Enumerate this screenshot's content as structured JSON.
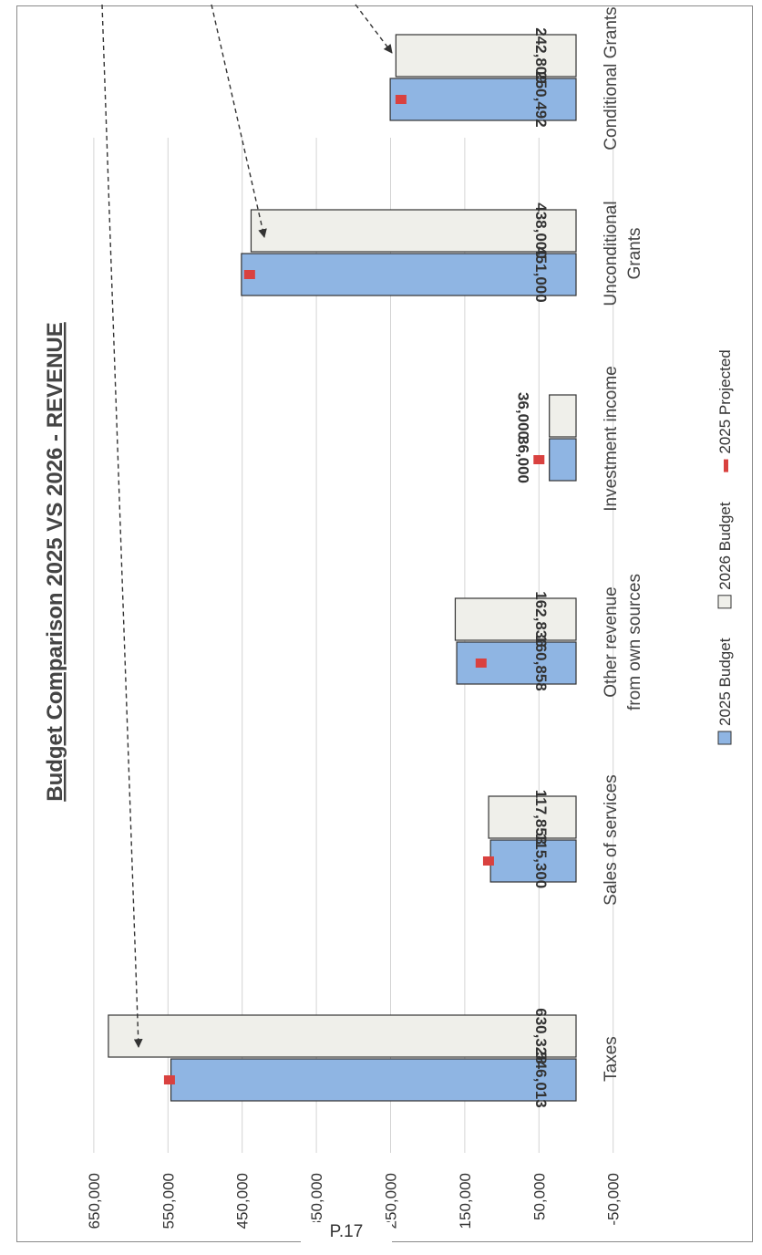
{
  "page": {
    "footer": "P.17"
  },
  "chart_data": {
    "type": "bar",
    "title": "Budget Comparison 2025 VS 2026 - REVENUE",
    "categories": [
      [
        "Taxes"
      ],
      [
        "Sales of services"
      ],
      [
        "Other revenue",
        "from own sources"
      ],
      [
        "Investment income"
      ],
      [
        "Unconditional",
        "Grants"
      ],
      [
        "Conditional Grants"
      ]
    ],
    "series": [
      {
        "name": "2025 Budget",
        "type": "bar",
        "color": "#8fb5e3",
        "values": [
          546013,
          115300,
          160858,
          36000,
          451000,
          250492
        ]
      },
      {
        "name": "2026 Budget",
        "type": "bar",
        "color": "#efefea",
        "values": [
          630328,
          117853,
          162836,
          36000,
          438000,
          242809
        ]
      },
      {
        "name": "2025 Projected",
        "type": "marker",
        "color": "#d9413f",
        "values": [
          548000,
          118000,
          128000,
          50000,
          440000,
          236000
        ]
      }
    ],
    "value_labels_2025": [
      "546,013",
      "115,300",
      "160,858",
      "36,000",
      "451,000",
      "250,492"
    ],
    "value_labels_2026": [
      "630,328",
      "117,853",
      "162,836",
      "36,000",
      "438,000",
      "242,809"
    ],
    "ylim": [
      -50000,
      650000
    ],
    "yticks": [
      -50000,
      50000,
      150000,
      250000,
      350000,
      450000,
      550000,
      650000
    ],
    "ytick_labels": [
      "-50,000",
      "50,000",
      "150,000",
      "250,000",
      "350,000",
      "450,000",
      "550,000",
      "650,000"
    ],
    "grid": true,
    "legend_position": "bottom",
    "orientation": "rotated-90-counterclockwise"
  }
}
